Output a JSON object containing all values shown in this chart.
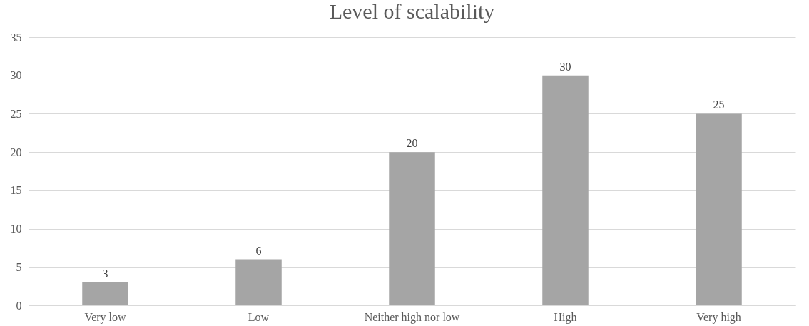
{
  "chart_data": {
    "type": "bar",
    "title": "Level of scalability",
    "categories": [
      "Very low",
      "Low",
      "Neither high nor low",
      "High",
      "Very high"
    ],
    "values": [
      3,
      6,
      20,
      30,
      25
    ],
    "color": "#a5a5a5",
    "ylim": [
      0,
      35
    ],
    "yticks": [
      0,
      5,
      10,
      15,
      20,
      25,
      30,
      35
    ],
    "grid": "y",
    "data_labels": true
  }
}
